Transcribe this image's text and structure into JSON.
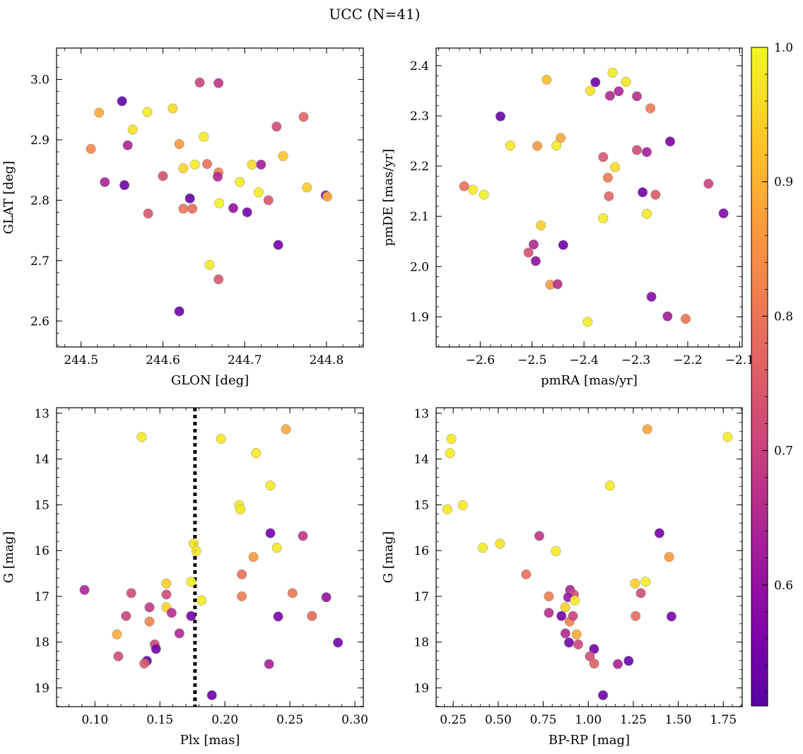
{
  "figure": {
    "title": "UCC (N=41)",
    "colorbar": {
      "min": 0.51,
      "max": 1.0,
      "ticks": [
        0.6,
        0.7,
        0.8,
        0.9,
        1.0
      ],
      "tick_labels": [
        "0.6",
        "0.7",
        "0.8",
        "0.9",
        "1.0"
      ],
      "colormap": "plasma"
    }
  },
  "chart_data": [
    {
      "type": "scatter",
      "xlabel": "GLON [deg]",
      "ylabel": "GLAT [deg]",
      "xlim": [
        244.47,
        244.845
      ],
      "ylim": [
        2.557,
        3.052
      ],
      "xticks": [
        244.5,
        244.6,
        244.7,
        244.8
      ],
      "xtick_labels": [
        "244.5",
        "244.6",
        "244.7",
        "244.8"
      ],
      "yticks": [
        2.6,
        2.7,
        2.8,
        2.9,
        3.0
      ],
      "ytick_labels": [
        "2.6",
        "2.7",
        "2.8",
        "2.9",
        "3.0"
      ],
      "invert_y": false,
      "points": [
        {
          "x": 244.645,
          "y": 2.995,
          "c": 0.7
        },
        {
          "x": 244.668,
          "y": 2.994,
          "c": 0.67
        },
        {
          "x": 244.55,
          "y": 2.964,
          "c": 0.52
        },
        {
          "x": 244.522,
          "y": 2.945,
          "c": 0.88
        },
        {
          "x": 244.581,
          "y": 2.946,
          "c": 0.98
        },
        {
          "x": 244.612,
          "y": 2.952,
          "c": 0.96
        },
        {
          "x": 244.772,
          "y": 2.938,
          "c": 0.77
        },
        {
          "x": 244.739,
          "y": 2.922,
          "c": 0.72
        },
        {
          "x": 244.563,
          "y": 2.917,
          "c": 0.97
        },
        {
          "x": 244.65,
          "y": 2.905,
          "c": 0.98
        },
        {
          "x": 244.512,
          "y": 2.885,
          "c": 0.83
        },
        {
          "x": 244.557,
          "y": 2.891,
          "c": 0.64
        },
        {
          "x": 244.62,
          "y": 2.893,
          "c": 0.86
        },
        {
          "x": 244.747,
          "y": 2.873,
          "c": 0.93
        },
        {
          "x": 244.625,
          "y": 2.853,
          "c": 0.95
        },
        {
          "x": 244.639,
          "y": 2.859,
          "c": 0.98
        },
        {
          "x": 244.654,
          "y": 2.86,
          "c": 0.79
        },
        {
          "x": 244.709,
          "y": 2.859,
          "c": 0.96
        },
        {
          "x": 244.72,
          "y": 2.859,
          "c": 0.62
        },
        {
          "x": 244.668,
          "y": 2.846,
          "c": 0.82
        },
        {
          "x": 244.667,
          "y": 2.839,
          "c": 0.65
        },
        {
          "x": 244.6,
          "y": 2.84,
          "c": 0.73
        },
        {
          "x": 244.529,
          "y": 2.83,
          "c": 0.64
        },
        {
          "x": 244.553,
          "y": 2.825,
          "c": 0.54
        },
        {
          "x": 244.694,
          "y": 2.83,
          "c": 0.98
        },
        {
          "x": 244.717,
          "y": 2.813,
          "c": 0.98
        },
        {
          "x": 244.776,
          "y": 2.821,
          "c": 0.94
        },
        {
          "x": 244.799,
          "y": 2.808,
          "c": 0.57
        },
        {
          "x": 244.801,
          "y": 2.806,
          "c": 0.89
        },
        {
          "x": 244.633,
          "y": 2.803,
          "c": 0.53
        },
        {
          "x": 244.669,
          "y": 2.795,
          "c": 0.99
        },
        {
          "x": 244.729,
          "y": 2.8,
          "c": 0.74
        },
        {
          "x": 244.625,
          "y": 2.786,
          "c": 0.8
        },
        {
          "x": 244.636,
          "y": 2.786,
          "c": 0.78
        },
        {
          "x": 244.686,
          "y": 2.787,
          "c": 0.6
        },
        {
          "x": 244.703,
          "y": 2.78,
          "c": 0.55
        },
        {
          "x": 244.582,
          "y": 2.778,
          "c": 0.74
        },
        {
          "x": 244.741,
          "y": 2.726,
          "c": 0.55
        },
        {
          "x": 244.657,
          "y": 2.693,
          "c": 0.98
        },
        {
          "x": 244.668,
          "y": 2.669,
          "c": 0.74
        },
        {
          "x": 244.62,
          "y": 2.616,
          "c": 0.53
        }
      ]
    },
    {
      "type": "scatter",
      "xlabel": "pmRA [mas/yr]",
      "ylabel": "pmDE [mas/yr]",
      "xlim": [
        -2.685,
        -2.095
      ],
      "ylim": [
        1.84,
        2.435
      ],
      "xticks": [
        -2.6,
        -2.5,
        -2.4,
        -2.3,
        -2.2,
        -2.1
      ],
      "xtick_labels": [
        "−2.6",
        "−2.5",
        "−2.4",
        "−2.3",
        "−2.2",
        "−2.1"
      ],
      "yticks": [
        1.9,
        2.0,
        2.1,
        2.2,
        2.3,
        2.4
      ],
      "ytick_labels": [
        "1.9",
        "2.0",
        "2.1",
        "2.2",
        "2.3",
        "2.4"
      ],
      "invert_y": false,
      "points": [
        {
          "x": -2.345,
          "y": 2.386,
          "c": 0.98
        },
        {
          "x": -2.472,
          "y": 2.372,
          "c": 0.92
        },
        {
          "x": -2.378,
          "y": 2.367,
          "c": 0.54
        },
        {
          "x": -2.319,
          "y": 2.368,
          "c": 0.97
        },
        {
          "x": -2.388,
          "y": 2.35,
          "c": 0.97
        },
        {
          "x": -2.35,
          "y": 2.34,
          "c": 0.65
        },
        {
          "x": -2.333,
          "y": 2.349,
          "c": 0.64
        },
        {
          "x": -2.298,
          "y": 2.339,
          "c": 0.66
        },
        {
          "x": -2.272,
          "y": 2.315,
          "c": 0.81
        },
        {
          "x": -2.561,
          "y": 2.299,
          "c": 0.53
        },
        {
          "x": -2.445,
          "y": 2.256,
          "c": 0.88
        },
        {
          "x": -2.234,
          "y": 2.249,
          "c": 0.56
        },
        {
          "x": -2.542,
          "y": 2.241,
          "c": 0.98
        },
        {
          "x": -2.49,
          "y": 2.24,
          "c": 0.86
        },
        {
          "x": -2.453,
          "y": 2.241,
          "c": 0.98
        },
        {
          "x": -2.298,
          "y": 2.232,
          "c": 0.72
        },
        {
          "x": -2.279,
          "y": 2.228,
          "c": 0.63
        },
        {
          "x": -2.363,
          "y": 2.218,
          "c": 0.74
        },
        {
          "x": -2.34,
          "y": 2.198,
          "c": 0.96
        },
        {
          "x": -2.354,
          "y": 2.177,
          "c": 0.81
        },
        {
          "x": -2.631,
          "y": 2.16,
          "c": 0.79
        },
        {
          "x": -2.614,
          "y": 2.153,
          "c": 0.98
        },
        {
          "x": -2.593,
          "y": 2.143,
          "c": 0.99
        },
        {
          "x": -2.16,
          "y": 2.165,
          "c": 0.7
        },
        {
          "x": -2.287,
          "y": 2.148,
          "c": 0.55
        },
        {
          "x": -2.262,
          "y": 2.143,
          "c": 0.75
        },
        {
          "x": -2.352,
          "y": 2.14,
          "c": 0.77
        },
        {
          "x": -2.279,
          "y": 2.105,
          "c": 0.98
        },
        {
          "x": -2.131,
          "y": 2.106,
          "c": 0.57
        },
        {
          "x": -2.363,
          "y": 2.096,
          "c": 0.98
        },
        {
          "x": -2.483,
          "y": 2.082,
          "c": 0.94
        },
        {
          "x": -2.44,
          "y": 2.043,
          "c": 0.54
        },
        {
          "x": -2.497,
          "y": 2.044,
          "c": 0.65
        },
        {
          "x": -2.507,
          "y": 2.028,
          "c": 0.73
        },
        {
          "x": -2.493,
          "y": 2.011,
          "c": 0.59
        },
        {
          "x": -2.465,
          "y": 1.964,
          "c": 0.86
        },
        {
          "x": -2.451,
          "y": 1.965,
          "c": 0.66
        },
        {
          "x": -2.27,
          "y": 1.94,
          "c": 0.58
        },
        {
          "x": -2.239,
          "y": 1.901,
          "c": 0.62
        },
        {
          "x": -2.204,
          "y": 1.896,
          "c": 0.8
        },
        {
          "x": -2.393,
          "y": 1.89,
          "c": 0.98
        }
      ]
    },
    {
      "type": "scatter",
      "xlabel": "Plx [mas]",
      "ylabel": "G [mag]",
      "xlim": [
        0.0705,
        0.3065
      ],
      "ylim": [
        19.41,
        12.88
      ],
      "xticks": [
        0.1,
        0.15,
        0.2,
        0.25,
        0.3
      ],
      "xtick_labels": [
        "0.10",
        "0.15",
        "0.20",
        "0.25",
        "0.30"
      ],
      "yticks": [
        13,
        14,
        15,
        16,
        17,
        18,
        19
      ],
      "ytick_labels": [
        "13",
        "14",
        "15",
        "16",
        "17",
        "18",
        "19"
      ],
      "invert_y": true,
      "vline": {
        "x": 0.177,
        "style": "dotted"
      },
      "points": [
        {
          "x": 0.136,
          "y": 13.52,
          "c": 0.98
        },
        {
          "x": 0.197,
          "y": 13.56,
          "c": 0.98
        },
        {
          "x": 0.247,
          "y": 13.35,
          "c": 0.88
        },
        {
          "x": 0.224,
          "y": 13.87,
          "c": 0.98
        },
        {
          "x": 0.235,
          "y": 14.58,
          "c": 0.98
        },
        {
          "x": 0.211,
          "y": 15.01,
          "c": 0.98
        },
        {
          "x": 0.212,
          "y": 15.1,
          "c": 0.98
        },
        {
          "x": 0.235,
          "y": 15.62,
          "c": 0.55
        },
        {
          "x": 0.26,
          "y": 15.68,
          "c": 0.68
        },
        {
          "x": 0.176,
          "y": 15.85,
          "c": 0.97
        },
        {
          "x": 0.178,
          "y": 16.01,
          "c": 0.98
        },
        {
          "x": 0.24,
          "y": 15.94,
          "c": 0.98
        },
        {
          "x": 0.222,
          "y": 16.14,
          "c": 0.86
        },
        {
          "x": 0.213,
          "y": 16.52,
          "c": 0.79
        },
        {
          "x": 0.155,
          "y": 16.72,
          "c": 0.94
        },
        {
          "x": 0.174,
          "y": 16.68,
          "c": 0.98
        },
        {
          "x": 0.092,
          "y": 16.86,
          "c": 0.64
        },
        {
          "x": 0.128,
          "y": 16.93,
          "c": 0.72
        },
        {
          "x": 0.155,
          "y": 16.96,
          "c": 0.72
        },
        {
          "x": 0.252,
          "y": 16.93,
          "c": 0.8
        },
        {
          "x": 0.213,
          "y": 17.0,
          "c": 0.81
        },
        {
          "x": 0.278,
          "y": 17.02,
          "c": 0.6
        },
        {
          "x": 0.182,
          "y": 17.09,
          "c": 0.98
        },
        {
          "x": 0.142,
          "y": 17.24,
          "c": 0.68
        },
        {
          "x": 0.155,
          "y": 17.24,
          "c": 0.95
        },
        {
          "x": 0.159,
          "y": 17.36,
          "c": 0.66
        },
        {
          "x": 0.124,
          "y": 17.43,
          "c": 0.7
        },
        {
          "x": 0.174,
          "y": 17.43,
          "c": 0.55
        },
        {
          "x": 0.241,
          "y": 17.44,
          "c": 0.56
        },
        {
          "x": 0.267,
          "y": 17.43,
          "c": 0.78
        },
        {
          "x": 0.142,
          "y": 17.55,
          "c": 0.82
        },
        {
          "x": 0.165,
          "y": 17.81,
          "c": 0.65
        },
        {
          "x": 0.117,
          "y": 17.83,
          "c": 0.89
        },
        {
          "x": 0.146,
          "y": 18.05,
          "c": 0.71
        },
        {
          "x": 0.147,
          "y": 18.15,
          "c": 0.55
        },
        {
          "x": 0.287,
          "y": 18.01,
          "c": 0.55
        },
        {
          "x": 0.118,
          "y": 18.31,
          "c": 0.72
        },
        {
          "x": 0.14,
          "y": 18.41,
          "c": 0.53
        },
        {
          "x": 0.138,
          "y": 18.47,
          "c": 0.76
        },
        {
          "x": 0.234,
          "y": 18.48,
          "c": 0.63
        },
        {
          "x": 0.19,
          "y": 19.16,
          "c": 0.54
        }
      ]
    },
    {
      "type": "scatter",
      "xlabel": "BP-RP [mag]",
      "ylabel": "G [mag]",
      "xlim": [
        0.155,
        1.855
      ],
      "ylim": [
        19.41,
        12.88
      ],
      "xticks": [
        0.25,
        0.5,
        0.75,
        1.0,
        1.25,
        1.5,
        1.75
      ],
      "xtick_labels": [
        "0.25",
        "0.50",
        "0.75",
        "1.00",
        "1.25",
        "1.50",
        "1.75"
      ],
      "yticks": [
        13,
        14,
        15,
        16,
        17,
        18,
        19
      ],
      "ytick_labels": [
        "13",
        "14",
        "15",
        "16",
        "17",
        "18",
        "19"
      ],
      "invert_y": true,
      "points": [
        {
          "x": 0.24,
          "y": 13.56,
          "c": 0.98
        },
        {
          "x": 1.328,
          "y": 13.35,
          "c": 0.88
        },
        {
          "x": 1.774,
          "y": 13.52,
          "c": 0.98
        },
        {
          "x": 0.232,
          "y": 13.87,
          "c": 0.98
        },
        {
          "x": 1.12,
          "y": 14.58,
          "c": 0.98
        },
        {
          "x": 0.217,
          "y": 15.1,
          "c": 0.98
        },
        {
          "x": 0.303,
          "y": 15.01,
          "c": 0.98
        },
        {
          "x": 1.395,
          "y": 15.62,
          "c": 0.55
        },
        {
          "x": 0.728,
          "y": 15.68,
          "c": 0.68
        },
        {
          "x": 0.414,
          "y": 15.94,
          "c": 0.98
        },
        {
          "x": 0.51,
          "y": 15.85,
          "c": 0.97
        },
        {
          "x": 0.82,
          "y": 16.01,
          "c": 0.98
        },
        {
          "x": 1.449,
          "y": 16.14,
          "c": 0.86
        },
        {
          "x": 0.655,
          "y": 16.52,
          "c": 0.79
        },
        {
          "x": 1.26,
          "y": 16.72,
          "c": 0.94
        },
        {
          "x": 1.318,
          "y": 16.68,
          "c": 0.98
        },
        {
          "x": 0.899,
          "y": 16.86,
          "c": 0.64
        },
        {
          "x": 1.292,
          "y": 16.93,
          "c": 0.72
        },
        {
          "x": 0.92,
          "y": 16.96,
          "c": 0.72
        },
        {
          "x": 0.888,
          "y": 17.02,
          "c": 0.6
        },
        {
          "x": 0.781,
          "y": 17.0,
          "c": 0.81
        },
        {
          "x": 0.925,
          "y": 17.09,
          "c": 0.98
        },
        {
          "x": 0.872,
          "y": 17.24,
          "c": 0.95
        },
        {
          "x": 0.897,
          "y": 17.55,
          "c": 0.82
        },
        {
          "x": 0.781,
          "y": 17.36,
          "c": 0.66
        },
        {
          "x": 0.851,
          "y": 17.43,
          "c": 0.55
        },
        {
          "x": 0.915,
          "y": 17.43,
          "c": 0.7
        },
        {
          "x": 1.263,
          "y": 17.43,
          "c": 0.78
        },
        {
          "x": 1.462,
          "y": 17.44,
          "c": 0.56
        },
        {
          "x": 0.873,
          "y": 17.81,
          "c": 0.65
        },
        {
          "x": 0.935,
          "y": 17.83,
          "c": 0.89
        },
        {
          "x": 0.893,
          "y": 18.01,
          "c": 0.55
        },
        {
          "x": 0.944,
          "y": 18.05,
          "c": 0.71
        },
        {
          "x": 1.032,
          "y": 18.15,
          "c": 0.55
        },
        {
          "x": 1.009,
          "y": 18.31,
          "c": 0.72
        },
        {
          "x": 1.033,
          "y": 18.47,
          "c": 0.76
        },
        {
          "x": 1.164,
          "y": 18.48,
          "c": 0.63
        },
        {
          "x": 1.224,
          "y": 18.41,
          "c": 0.53
        },
        {
          "x": 1.082,
          "y": 19.16,
          "c": 0.54
        }
      ]
    }
  ]
}
